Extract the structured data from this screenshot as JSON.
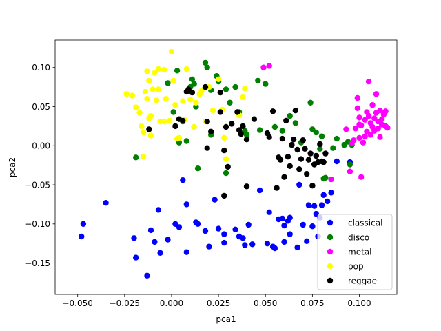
{
  "chart_data": {
    "type": "scatter",
    "title": "",
    "xlabel": "pca1",
    "ylabel": "pca2",
    "xlim": [
      -0.062,
      0.12
    ],
    "ylim": [
      -0.19,
      0.135
    ],
    "xticks": [
      -0.05,
      -0.025,
      0.0,
      0.025,
      0.05,
      0.075,
      0.1
    ],
    "xtick_labels": [
      "−0.050",
      "−0.025",
      "0.000",
      "0.025",
      "0.050",
      "0.075",
      "0.100"
    ],
    "yticks": [
      -0.15,
      -0.1,
      -0.05,
      0.0,
      0.05,
      0.1
    ],
    "ytick_labels": [
      "−0.15",
      "−0.10",
      "−0.05",
      "0.00",
      "0.05",
      "0.10"
    ],
    "grid": false,
    "legend_position": "lower-right",
    "series": [
      {
        "name": "classical",
        "color": "#0000ff",
        "points": [
          [
            -0.048,
            -0.116
          ],
          [
            -0.047,
            -0.1
          ],
          [
            -0.035,
            -0.073
          ],
          [
            -0.02,
            -0.118
          ],
          [
            -0.019,
            -0.143
          ],
          [
            -0.013,
            -0.166
          ],
          [
            -0.011,
            -0.108
          ],
          [
            -0.009,
            -0.123
          ],
          [
            -0.007,
            -0.082
          ],
          [
            -0.006,
            -0.137
          ],
          [
            -0.002,
            -0.12
          ],
          [
            0.002,
            -0.1
          ],
          [
            0.004,
            -0.104
          ],
          [
            0.006,
            -0.044
          ],
          [
            0.008,
            -0.075
          ],
          [
            0.008,
            -0.136
          ],
          [
            0.013,
            -0.098
          ],
          [
            0.014,
            -0.1
          ],
          [
            0.018,
            -0.109
          ],
          [
            0.02,
            -0.129
          ],
          [
            0.023,
            -0.069
          ],
          [
            0.025,
            -0.106
          ],
          [
            0.028,
            -0.113
          ],
          [
            0.028,
            -0.124
          ],
          [
            0.034,
            -0.107
          ],
          [
            0.036,
            -0.116
          ],
          [
            0.038,
            -0.118
          ],
          [
            0.039,
            -0.127
          ],
          [
            0.041,
            -0.101
          ],
          [
            0.043,
            -0.126
          ],
          [
            0.047,
            -0.057
          ],
          [
            0.051,
            -0.125
          ],
          [
            0.052,
            -0.085
          ],
          [
            0.054,
            -0.129
          ],
          [
            0.055,
            -0.131
          ],
          [
            0.057,
            -0.094
          ],
          [
            0.059,
            -0.093
          ],
          [
            0.06,
            -0.102
          ],
          [
            0.06,
            -0.123
          ],
          [
            0.062,
            -0.096
          ],
          [
            0.063,
            -0.092
          ],
          [
            0.063,
            -0.113
          ],
          [
            0.067,
            -0.13
          ],
          [
            0.068,
            -0.05
          ],
          [
            0.07,
            -0.101
          ],
          [
            0.072,
            -0.122
          ],
          [
            0.073,
            -0.076
          ],
          [
            0.075,
            -0.103
          ],
          [
            0.076,
            -0.077
          ],
          [
            0.077,
            -0.087
          ],
          [
            0.078,
            -0.116
          ],
          [
            0.079,
            -0.092
          ],
          [
            0.08,
            -0.076
          ],
          [
            0.081,
            -0.063
          ],
          [
            0.083,
            -0.071
          ],
          [
            0.085,
            -0.06
          ],
          [
            0.088,
            -0.02
          ],
          [
            0.095,
            -0.021
          ]
        ]
      },
      {
        "name": "disco",
        "color": "#008000",
        "points": [
          [
            -0.019,
            -0.015
          ],
          [
            -0.002,
            0.08
          ],
          [
            0.001,
            0.043
          ],
          [
            0.003,
            0.096
          ],
          [
            0.004,
            0.004
          ],
          [
            0.006,
            0.031
          ],
          [
            0.008,
            0.006
          ],
          [
            0.01,
            0.075
          ],
          [
            0.011,
            0.085
          ],
          [
            0.012,
            0.079
          ],
          [
            0.013,
            0.05
          ],
          [
            0.014,
            -0.029
          ],
          [
            0.018,
            0.106
          ],
          [
            0.019,
            0.1
          ],
          [
            0.021,
            0.014
          ],
          [
            0.021,
            0.071
          ],
          [
            0.024,
            0.089
          ],
          [
            0.025,
            0.082
          ],
          [
            0.029,
            0.072
          ],
          [
            0.029,
            -0.035
          ],
          [
            0.031,
            0.055
          ],
          [
            0.034,
            0.075
          ],
          [
            0.036,
            0.043
          ],
          [
            0.039,
            0.019
          ],
          [
            0.04,
            0.014
          ],
          [
            0.046,
            0.083
          ],
          [
            0.047,
            0.02
          ],
          [
            0.05,
            0.079
          ],
          [
            0.055,
            0.024
          ],
          [
            0.059,
            0.019
          ],
          [
            0.063,
            0.038
          ],
          [
            0.066,
            0.029
          ],
          [
            0.069,
            0.004
          ],
          [
            0.07,
            0.007
          ],
          [
            0.074,
            0.055
          ],
          [
            0.075,
            0.021
          ],
          [
            0.077,
            0.017
          ],
          [
            0.079,
            -0.004
          ],
          [
            0.08,
            0.012
          ],
          [
            0.081,
            -0.042
          ],
          [
            0.082,
            -0.041
          ],
          [
            0.086,
            -0.003
          ],
          [
            0.088,
            0.009
          ],
          [
            0.092,
            0.001
          ],
          [
            0.094,
            0.005
          ],
          [
            0.095,
            -0.024
          ],
          [
            0.096,
            0.001
          ]
        ]
      },
      {
        "name": "metal",
        "color": "#ff00ff",
        "points": [
          [
            0.049,
            0.1
          ],
          [
            0.052,
            0.102
          ],
          [
            0.085,
            -0.043
          ],
          [
            0.093,
            0.021
          ],
          [
            0.095,
            -0.033
          ],
          [
            0.096,
            0.003
          ],
          [
            0.097,
            0.007
          ],
          [
            0.098,
            0.022
          ],
          [
            0.099,
            0.061
          ],
          [
            0.099,
            0.048
          ],
          [
            0.1,
            0.036
          ],
          [
            0.1,
            0.027
          ],
          [
            0.1,
            0.01
          ],
          [
            0.101,
            -0.04
          ],
          [
            0.101,
            0.026
          ],
          [
            0.102,
            0.004
          ],
          [
            0.103,
            0.033
          ],
          [
            0.103,
            0.012
          ],
          [
            0.104,
            0.043
          ],
          [
            0.104,
            0.018
          ],
          [
            0.105,
            0.082
          ],
          [
            0.105,
            0.038
          ],
          [
            0.106,
            0.029
          ],
          [
            0.106,
            0.014
          ],
          [
            0.107,
            0.052
          ],
          [
            0.107,
            0.024
          ],
          [
            0.108,
            0.035
          ],
          [
            0.108,
            0.019
          ],
          [
            0.109,
            0.066
          ],
          [
            0.109,
            0.042
          ],
          [
            0.11,
            0.031
          ],
          [
            0.11,
            0.022
          ],
          [
            0.111,
            0.045
          ],
          [
            0.111,
            0.011
          ],
          [
            0.112,
            0.034
          ],
          [
            0.112,
            0.027
          ],
          [
            0.113,
            0.04
          ],
          [
            0.114,
            0.025
          ],
          [
            0.114,
            0.044
          ],
          [
            0.115,
            0.023
          ]
        ]
      },
      {
        "name": "pop",
        "color": "#ffff00",
        "points": [
          [
            -0.024,
            0.066
          ],
          [
            -0.021,
            0.064
          ],
          [
            -0.019,
            0.049
          ],
          [
            -0.017,
            0.042
          ],
          [
            -0.016,
            0.025
          ],
          [
            -0.015,
            0.017
          ],
          [
            -0.015,
            -0.014
          ],
          [
            -0.014,
            0.069
          ],
          [
            -0.013,
            0.095
          ],
          [
            -0.013,
            0.06
          ],
          [
            -0.012,
            0.083
          ],
          [
            -0.012,
            0.035
          ],
          [
            -0.011,
            0.038
          ],
          [
            -0.011,
            0.013
          ],
          [
            -0.01,
            0.072
          ],
          [
            -0.009,
            0.093
          ],
          [
            -0.008,
            0.058
          ],
          [
            -0.007,
            0.098
          ],
          [
            -0.007,
            0.072
          ],
          [
            -0.006,
            0.031
          ],
          [
            -0.004,
            0.097
          ],
          [
            -0.004,
            0.031
          ],
          [
            -0.003,
            0.06
          ],
          [
            -0.001,
            0.032
          ],
          [
            0.0,
            0.12
          ],
          [
            0.001,
            0.083
          ],
          [
            0.002,
            0.052
          ],
          [
            0.003,
            0.009
          ],
          [
            0.004,
            0.01
          ],
          [
            0.006,
            0.057
          ],
          [
            0.007,
            0.033
          ],
          [
            0.008,
            0.098
          ],
          [
            0.01,
            0.059
          ],
          [
            0.012,
            0.024
          ],
          [
            0.013,
            0.055
          ],
          [
            0.015,
            0.066
          ],
          [
            0.016,
            0.07
          ],
          [
            0.018,
            0.031
          ],
          [
            0.02,
            0.075
          ],
          [
            0.022,
            0.045
          ],
          [
            0.025,
            0.085
          ],
          [
            0.027,
            0.046
          ],
          [
            0.028,
            0.01
          ],
          [
            0.029,
            -0.017
          ],
          [
            0.036,
            0.039
          ],
          [
            0.038,
            0.062
          ],
          [
            0.039,
            0.073
          ]
        ]
      },
      {
        "name": "reggae",
        "color": "#000000",
        "points": [
          [
            -0.012,
            0.021
          ],
          [
            0.002,
            0.025
          ],
          [
            0.004,
            0.034
          ],
          [
            0.006,
            0.032
          ],
          [
            0.008,
            0.069
          ],
          [
            0.009,
            0.072
          ],
          [
            0.011,
            0.068
          ],
          [
            0.018,
            0.075
          ],
          [
            0.019,
            0.031
          ],
          [
            0.019,
            -0.003
          ],
          [
            0.021,
            0.018
          ],
          [
            0.026,
            0.068
          ],
          [
            0.026,
            0.043
          ],
          [
            0.028,
            -0.006
          ],
          [
            0.028,
            -0.064
          ],
          [
            0.029,
            0.024
          ],
          [
            0.03,
            -0.027
          ],
          [
            0.032,
            0.028
          ],
          [
            0.035,
            0.043
          ],
          [
            0.036,
            0.02
          ],
          [
            0.037,
            0.015
          ],
          [
            0.038,
            0.025
          ],
          [
            0.04,
            0.008
          ],
          [
            0.04,
            -0.052
          ],
          [
            0.044,
            0.034
          ],
          [
            0.051,
            0.016
          ],
          [
            0.052,
            0.011
          ],
          [
            0.054,
            0.044
          ],
          [
            0.056,
            -0.054
          ],
          [
            0.057,
            -0.015
          ],
          [
            0.058,
            -0.018
          ],
          [
            0.059,
            0.009
          ],
          [
            0.06,
            -0.04
          ],
          [
            0.061,
            0.032
          ],
          [
            0.062,
            -0.014
          ],
          [
            0.063,
            -0.026
          ],
          [
            0.064,
            0.001
          ],
          [
            0.065,
            0.008
          ],
          [
            0.066,
            0.045
          ],
          [
            0.067,
            -0.005
          ],
          [
            0.068,
            -0.03
          ],
          [
            0.069,
            -0.017
          ],
          [
            0.07,
            0.007
          ],
          [
            0.071,
            -0.004
          ],
          [
            0.072,
            -0.036
          ],
          [
            0.073,
            -0.018
          ],
          [
            0.074,
            -0.01
          ],
          [
            0.075,
            -0.051
          ],
          [
            0.076,
            -0.024
          ],
          [
            0.077,
            -0.013
          ],
          [
            0.078,
            -0.021
          ],
          [
            0.079,
            0.002
          ],
          [
            0.08,
            -0.02
          ],
          [
            0.081,
            -0.021
          ],
          [
            0.082,
            -0.01
          ]
        ]
      }
    ]
  }
}
